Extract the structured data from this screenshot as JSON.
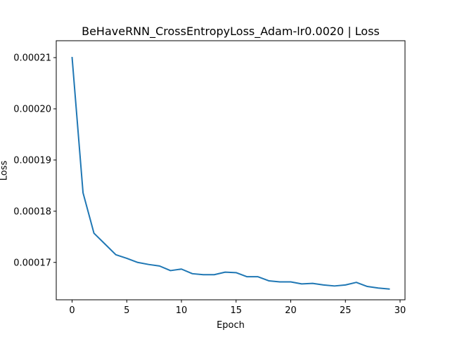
{
  "chart_data": {
    "type": "line",
    "title": "BeHaveRNN_CrossEntropyLoss_Adam-lr0.0020 | Loss",
    "xlabel": "Epoch",
    "ylabel": "Loss",
    "xlim": [
      -1.45,
      30.45
    ],
    "ylim": [
      0.0001627,
      0.0002133
    ],
    "x_ticks": [
      0,
      5,
      10,
      15,
      20,
      25,
      30
    ],
    "x_tick_labels": [
      "0",
      "5",
      "10",
      "15",
      "20",
      "25",
      "30"
    ],
    "y_ticks": [
      0.00017,
      0.00018,
      0.00019,
      0.0002,
      0.00021
    ],
    "y_tick_labels": [
      "0.00017",
      "0.00018",
      "0.00019",
      "0.00020",
      "0.00021"
    ],
    "grid": false,
    "legend": "none",
    "series": [
      {
        "color": "#1f77b4",
        "x": [
          0,
          1,
          2,
          3,
          4,
          5,
          6,
          7,
          8,
          9,
          10,
          11,
          12,
          13,
          14,
          15,
          16,
          17,
          18,
          19,
          20,
          21,
          22,
          23,
          24,
          25,
          26,
          27,
          28,
          29
        ],
        "values": [
          0.00021,
          0.0001836,
          0.0001757,
          0.0001736,
          0.0001715,
          0.0001708,
          0.00017,
          0.0001696,
          0.0001693,
          0.0001684,
          0.0001687,
          0.0001678,
          0.0001676,
          0.0001676,
          0.0001681,
          0.000168,
          0.0001672,
          0.0001672,
          0.0001664,
          0.0001662,
          0.0001662,
          0.0001658,
          0.0001659,
          0.0001656,
          0.0001654,
          0.0001656,
          0.0001661,
          0.0001653,
          0.000165,
          0.0001648
        ]
      }
    ]
  }
}
